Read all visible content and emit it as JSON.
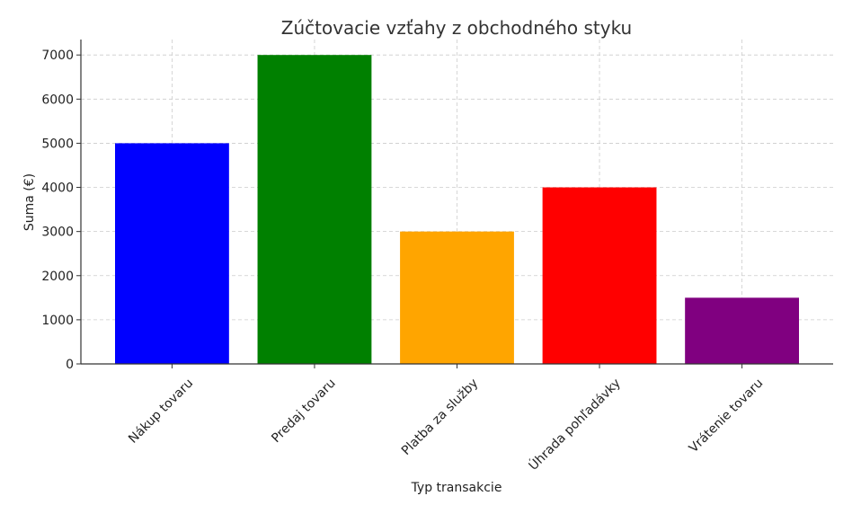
{
  "chart_data": {
    "type": "bar",
    "title": "Zúčtovacie vzťahy z obchodného styku",
    "xlabel": "Typ transakcie",
    "ylabel": "Suma (€)",
    "categories": [
      "Nákup tovaru",
      "Predaj tovaru",
      "Platba za služby",
      "Úhrada pohľadávky",
      "Vrátenie tovaru"
    ],
    "values": [
      5000,
      7000,
      3000,
      4000,
      1500
    ],
    "colors": [
      "#0000ff",
      "#008000",
      "#ffa500",
      "#ff0000",
      "#800080"
    ],
    "ylim": [
      0,
      7350
    ],
    "yticks": [
      0,
      1000,
      2000,
      3000,
      4000,
      5000,
      6000,
      7000
    ],
    "grid": true
  }
}
